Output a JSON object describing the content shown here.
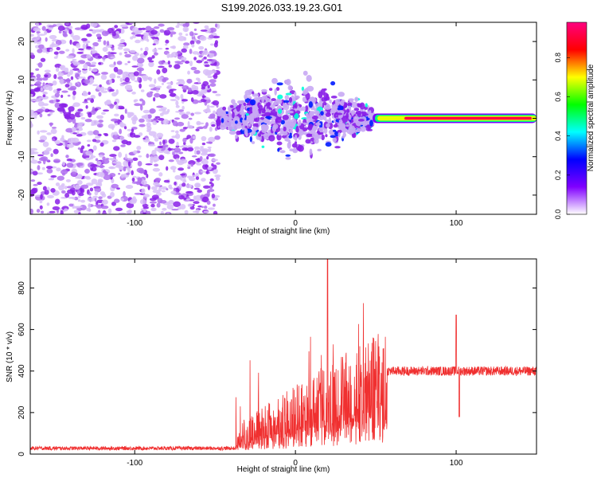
{
  "title": "S199.2026.033.19.23.G01",
  "chart_data": [
    {
      "type": "heatmap",
      "title": "S199.2026.033.19.23.G01",
      "xlabel": "Height of straight line (km)",
      "ylabel": "Frequency (Hz)",
      "xlim": [
        -165,
        150
      ],
      "ylim": [
        -25,
        25
      ],
      "xticks": [
        -100,
        0,
        100
      ],
      "yticks": [
        -20,
        -10,
        0,
        10,
        20
      ],
      "colorbar": {
        "label": "Normalized spectral amplitude",
        "range": [
          0,
          1
        ],
        "ticks": [
          "0.0",
          "0.2",
          "0.4",
          "0.6",
          "0.8"
        ],
        "colors": [
          "#ffffff",
          "#8000ff",
          "#0000ff",
          "#00ffff",
          "#00ff00",
          "#ffff00",
          "#ff0000",
          "#ff0080"
        ]
      },
      "regions": [
        {
          "name": "noise",
          "x_range": [
            -165,
            -48
          ],
          "f_range": [
            -25,
            25
          ],
          "amplitude": 0.1
        },
        {
          "name": "scattered",
          "x_range": [
            -48,
            48
          ],
          "f_center": 0,
          "f_spread": 10,
          "amplitude": 0.2
        },
        {
          "name": "tone",
          "x_range": [
            48,
            150
          ],
          "f_center": 0,
          "amplitude": 0.95
        }
      ]
    },
    {
      "type": "line",
      "xlabel": "Height of straight line (km)",
      "ylabel": "SNR (10 * v/v)",
      "xlim": [
        -165,
        150
      ],
      "ylim": [
        0,
        940
      ],
      "xticks": [
        -100,
        0,
        100
      ],
      "yticks": [
        0,
        200,
        400,
        600,
        800
      ],
      "color": "#f03030",
      "series": [
        {
          "name": "SNR",
          "segments": [
            {
              "x_range": [
                -165,
                -37
              ],
              "level": 28,
              "jitter": 18
            },
            {
              "x_range": [
                -37,
                57
              ],
              "level_start": 120,
              "level_end": 520,
              "jitter": 300
            },
            {
              "x_range": [
                57,
                150
              ],
              "level": 400,
              "jitter": 45
            }
          ]
        }
      ],
      "annotations": [
        {
          "x": 20,
          "peak": 940
        },
        {
          "x": 100,
          "peak": 670,
          "dip": 180
        }
      ]
    }
  ]
}
